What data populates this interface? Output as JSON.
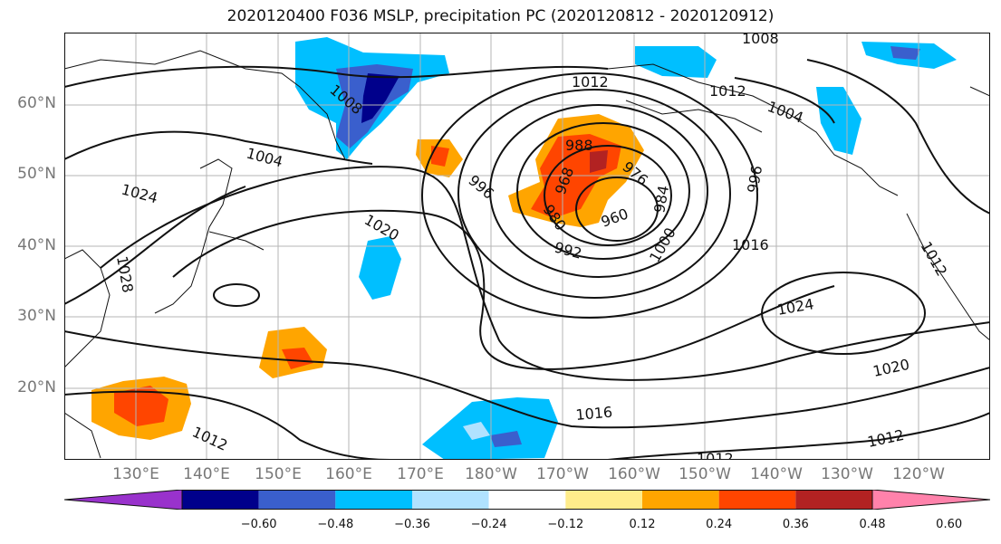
{
  "title": "2020120400 F036 MSLP, precipitation PC (2020120812 - 2020120912)",
  "lat_labels": [
    "60°N",
    "50°N",
    "40°N",
    "30°N",
    "20°N"
  ],
  "lon_labels": [
    "130°E",
    "140°E",
    "150°E",
    "160°E",
    "170°E",
    "180°W",
    "170°W",
    "160°W",
    "150°W",
    "140°W",
    "130°W",
    "120°W"
  ],
  "colorbar": {
    "colors": [
      "#9932CC",
      "#00008B",
      "#3A5FCD",
      "#00BFFF",
      "#B0E2FF",
      "#FFFFFF",
      "#FFEC8B",
      "#FFA500",
      "#FF4500",
      "#B22222",
      "#FF82AB"
    ],
    "tick_labels": [
      "−0.60",
      "−0.48",
      "−0.36",
      "−0.24",
      "−0.12",
      "0.12",
      "0.24",
      "0.36",
      "0.48",
      "0.60"
    ]
  },
  "isobar_labels": [
    "1008",
    "1008",
    "1012",
    "1012",
    "1004",
    "1004",
    "1024",
    "1028",
    "1020",
    "996",
    "988",
    "976",
    "968",
    "980",
    "960",
    "992",
    "984",
    "1000",
    "1016",
    "996",
    "1012",
    "1024",
    "1020",
    "1016",
    "1012",
    "1012",
    "1012"
  ],
  "chart_data": {
    "type": "heatmap",
    "title": "2020120400 F036 MSLP, precipitation PC (2020120812 - 2020120912)",
    "field": "MSLP contours (hPa) with precipitation PC shading",
    "lat_range": [
      "10°N",
      "70°N"
    ],
    "lon_range": [
      "120°E",
      "110°W"
    ],
    "isobar_values_hPa": [
      960,
      968,
      976,
      980,
      984,
      988,
      992,
      996,
      1000,
      1004,
      1008,
      1012,
      1016,
      1020,
      1024,
      1028
    ],
    "low_center": "~47°N 155°W (< 960 hPa)",
    "shading_levels": [
      -0.6,
      -0.48,
      -0.36,
      -0.24,
      -0.12,
      0.12,
      0.24,
      0.36,
      0.48,
      0.6
    ],
    "legend_placement": "bottom"
  }
}
